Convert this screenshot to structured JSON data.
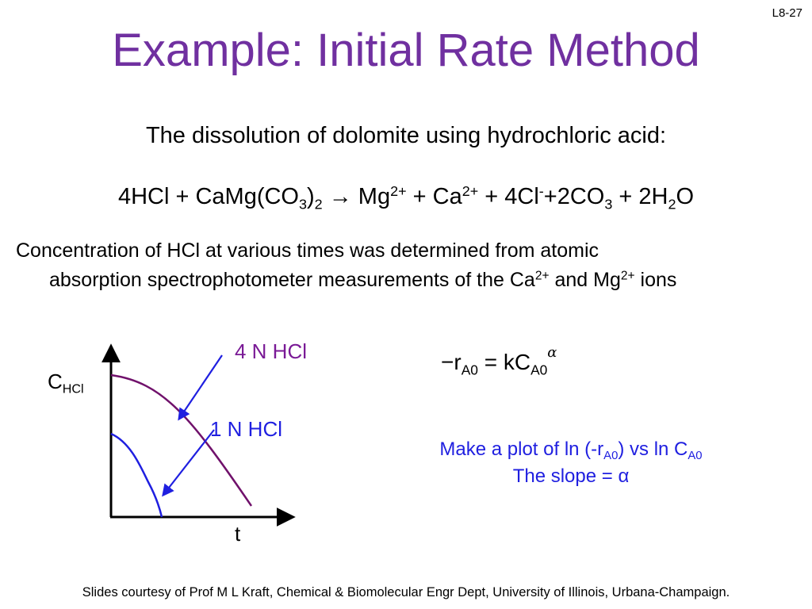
{
  "slide_number": "L8-27",
  "title": "Example: Initial Rate Method",
  "intro": "The dissolution of dolomite using hydrochloric acid:",
  "equation": {
    "p1": "4HCl + CaMg(CO",
    "s1": "3",
    "p2": ")",
    "s2": "2",
    "p3": " → Mg",
    "sup1": "2+",
    "p4": " + Ca",
    "sup2": "2+",
    "p5": " + 4Cl",
    "sup3": "-",
    "p6": "+2CO",
    "s3": "3",
    "p7": " + 2H",
    "s4": "2",
    "p8": "O"
  },
  "description": {
    "line1": "Concentration of HCl at various times was determined from atomic",
    "line2_a": "absorption spectrophotometer measurements of the Ca",
    "sup1": "2+",
    "line2_b": " and Mg",
    "sup2": "2+",
    "line2_c": " ions"
  },
  "graph": {
    "y_label": "C",
    "y_label_sub": "HCl",
    "x_label": "t",
    "curve_labels": [
      "4 N HCl",
      "1 N HCl"
    ],
    "curve_colors": [
      "#70116b",
      "#1f1fe0"
    ],
    "arrow_color": "#1f1fe0"
  },
  "rate_law": {
    "neg_r": "−r",
    "sub1": "A0",
    "eq": " = kC",
    "sub2": "A0",
    "exp": "α"
  },
  "instruction": {
    "a": "Make a plot of ln (-r",
    "sub1": "A0",
    "b": ") vs ln C",
    "sub2": "A0",
    "line2": "The slope = α"
  },
  "footer": "Slides courtesy of Prof M L Kraft, Chemical & Biomolecular Engr Dept, University of Illinois, Urbana-Champaign."
}
